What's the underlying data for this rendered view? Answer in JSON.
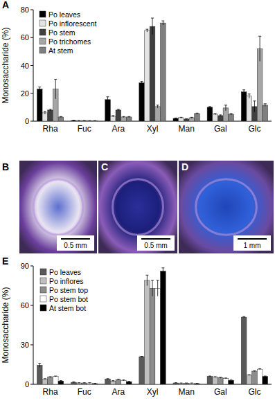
{
  "chart_data": [
    {
      "type": "bar",
      "title": "A",
      "y_label": "Monosaccharide (%)",
      "categories": [
        "Rha",
        "Fuc",
        "Ara",
        "Xyl",
        "Man",
        "Gal",
        "Glc"
      ],
      "ylim": [
        0,
        80
      ],
      "yticks": [
        0,
        20,
        40,
        60,
        80
      ],
      "legend": "upper left",
      "series": [
        {
          "name": "Po leaves",
          "color": "#000000",
          "values": [
            23,
            0.5,
            15.5,
            27.5,
            2,
            10,
            21
          ],
          "errors": [
            1.5,
            0.2,
            2,
            1,
            0.3,
            0.5,
            1.5
          ]
        },
        {
          "name": "Po inflorescent",
          "color": "#e3e3e3",
          "values": [
            6,
            0.3,
            3.5,
            65,
            2.5,
            5,
            18
          ],
          "errors": [
            1,
            0.2,
            0.5,
            1,
            0.3,
            0.5,
            1.5
          ]
        },
        {
          "name": "Po stem",
          "color": "#404040",
          "values": [
            8,
            0.3,
            8,
            68,
            1.5,
            4,
            10.5
          ],
          "errors": [
            0.5,
            0.2,
            0.5,
            6,
            0.3,
            0.5,
            4
          ]
        },
        {
          "name": "Po trichomes",
          "color": "#a6a6a6",
          "values": [
            23,
            0.2,
            3,
            10.5,
            2.5,
            9.5,
            52
          ],
          "errors": [
            7,
            0.2,
            0.3,
            1,
            0.3,
            2,
            9
          ]
        },
        {
          "name": "At stem",
          "color": "#7f7f7f",
          "values": [
            3,
            0.2,
            3,
            70.5,
            5.5,
            5,
            11.5
          ],
          "errors": [
            0.3,
            0.2,
            0.3,
            1.5,
            0.3,
            0.5,
            1
          ]
        }
      ]
    },
    {
      "type": "bar",
      "title": "E",
      "y_label": "Monosaccharide (%)",
      "categories": [
        "Rha",
        "Fuc",
        "Ara",
        "Xyl",
        "Man",
        "Gal",
        "Glc"
      ],
      "ylim": [
        0,
        90
      ],
      "yticks": [
        0,
        30,
        60,
        90
      ],
      "legend": "upper left",
      "series": [
        {
          "name": "Po leaves",
          "color": "#595959",
          "values": [
            14.5,
            1.5,
            4,
            21,
            1,
            6,
            51
          ],
          "errors": [
            1.5,
            0.3,
            0.3,
            0.3,
            0.2,
            0.3,
            0.5
          ]
        },
        {
          "name": "Po inflores",
          "color": "#c0c0c0",
          "values": [
            4,
            1,
            2.5,
            79,
            0.8,
            5.5,
            7
          ],
          "errors": [
            0.3,
            0.2,
            0.3,
            4,
            0.2,
            0.3,
            0.3
          ]
        },
        {
          "name": "Po stem top",
          "color": "#8c8c8c",
          "values": [
            5.5,
            1,
            3.5,
            73,
            0.8,
            5,
            10
          ],
          "errors": [
            0.3,
            0.2,
            0.3,
            6,
            0.2,
            0.3,
            0.3
          ]
        },
        {
          "name": "Po stem bot",
          "color": "#ffffff",
          "values": [
            6,
            1,
            3,
            73,
            0.8,
            4.5,
            11.5
          ],
          "errors": [
            0.3,
            0.2,
            0.3,
            6,
            0.2,
            0.3,
            0.3
          ]
        },
        {
          "name": "At stem bot",
          "color": "#000000",
          "values": [
            2.5,
            0.5,
            2,
            86,
            0.5,
            3,
            6
          ],
          "errors": [
            0.3,
            0.2,
            0.3,
            2.5,
            0.2,
            0.3,
            0.3
          ]
        }
      ]
    }
  ],
  "panels": [
    {
      "label": "B",
      "scale_bar": "0.5 mm"
    },
    {
      "label": "C",
      "scale_bar": "0.5 mm"
    },
    {
      "label": "D",
      "scale_bar": "1 mm"
    }
  ]
}
